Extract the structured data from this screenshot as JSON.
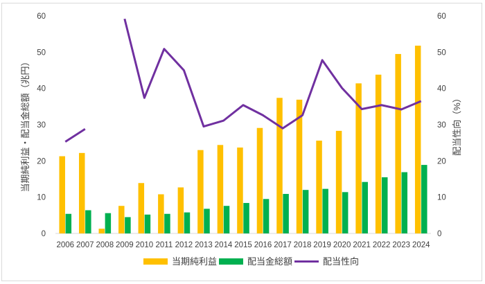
{
  "chart_data": {
    "type": "bar",
    "title": "",
    "categories": [
      "2006",
      "2007",
      "2008",
      "2009",
      "2010",
      "2011",
      "2012",
      "2013",
      "2014",
      "2015",
      "2016",
      "2017",
      "2018",
      "2019",
      "2020",
      "2021",
      "2022",
      "2023",
      "2024"
    ],
    "series": [
      {
        "name": "当期純利益",
        "axis": "left",
        "kind": "bar",
        "color": "#FFC000",
        "values": [
          21.3,
          22.2,
          1.3,
          7.6,
          13.9,
          10.8,
          12.7,
          23.0,
          24.4,
          23.7,
          29.1,
          37.4,
          36.9,
          25.6,
          28.3,
          41.4,
          43.8,
          49.5,
          51.8
        ]
      },
      {
        "name": "配当金総額",
        "axis": "left",
        "kind": "bar",
        "color": "#00B050",
        "values": [
          5.4,
          6.4,
          5.6,
          4.5,
          5.2,
          5.4,
          5.8,
          6.8,
          7.6,
          8.4,
          9.5,
          10.9,
          12.0,
          12.3,
          11.4,
          14.2,
          15.5,
          16.9,
          18.9
        ]
      },
      {
        "name": "配当性向",
        "axis": "right",
        "kind": "line",
        "color": "#7030A0",
        "values": [
          25.3,
          28.8,
          null,
          59.2,
          37.4,
          50.9,
          45.0,
          29.5,
          31.1,
          35.4,
          32.6,
          29.0,
          32.6,
          47.8,
          40.1,
          34.3,
          35.4,
          34.2,
          36.5
        ]
      }
    ],
    "ylabel_left": "当期純利益・配当金総額（兆円）",
    "ylabel_right": "配当性向（%）",
    "ylim_left": [
      0,
      60
    ],
    "ylim_right": [
      0,
      60
    ],
    "yticks": [
      "0",
      "10",
      "20",
      "30",
      "40",
      "50",
      "60"
    ],
    "grid": false,
    "legend_position": "bottom"
  }
}
